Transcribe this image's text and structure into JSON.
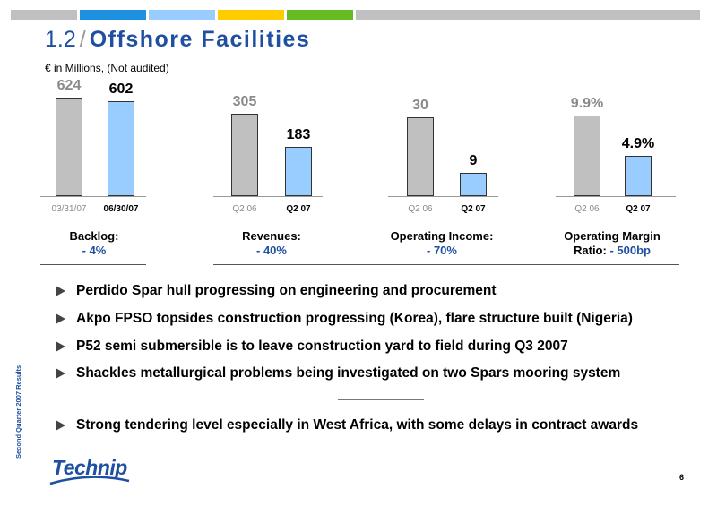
{
  "colors": {
    "accent": "#1f4fa0",
    "bar_prev": "#c0c0c0",
    "bar_curr": "#99ccff",
    "topbar": [
      "#c0c0c0",
      "#1e90e0",
      "#99ccff",
      "#ffcc00",
      "#66bb22",
      "#c0c0c0"
    ]
  },
  "header": {
    "number": "1.2",
    "separator": "/",
    "title": "Offshore Facilities",
    "subtitle": "€ in Millions, (Not audited)"
  },
  "chart_data": [
    {
      "type": "bar",
      "categories": [
        "03/31/07",
        "06/30/07"
      ],
      "values": [
        624,
        602
      ],
      "value_labels": [
        "624",
        "602"
      ],
      "metric_label": "Backlog:",
      "change": "- 4%"
    },
    {
      "type": "bar",
      "categories": [
        "Q2 06",
        "Q2 07"
      ],
      "values": [
        305,
        183
      ],
      "value_labels": [
        "305",
        "183"
      ],
      "metric_label": "Revenues:",
      "change": "- 40%"
    },
    {
      "type": "bar",
      "categories": [
        "Q2 06",
        "Q2 07"
      ],
      "values": [
        30,
        9
      ],
      "value_labels": [
        "30",
        "9"
      ],
      "metric_label": "Operating Income:",
      "change": "- 70%"
    },
    {
      "type": "bar",
      "categories": [
        "Q2 06",
        "Q2 07"
      ],
      "values": [
        9.9,
        4.9
      ],
      "value_labels": [
        "9.9%",
        "4.9%"
      ],
      "metric_label": "Operating Margin",
      "metric_label_2": "Ratio:",
      "change": "- 500bp"
    }
  ],
  "bullets": [
    "Perdido Spar hull progressing on engineering and procurement",
    "Akpo FPSO topsides construction progressing (Korea), flare structure built (Nigeria)",
    "P52 semi submersible is to leave construction yard to field during Q3 2007",
    "Shackles metallurgical problems being investigated on two Spars mooring system",
    "Strong tendering level especially in West Africa, with some delays in contract awards"
  ],
  "footer": {
    "side_text": "Second Quarter 2007 Results",
    "logo_text": "Technip",
    "page_number": "6"
  }
}
